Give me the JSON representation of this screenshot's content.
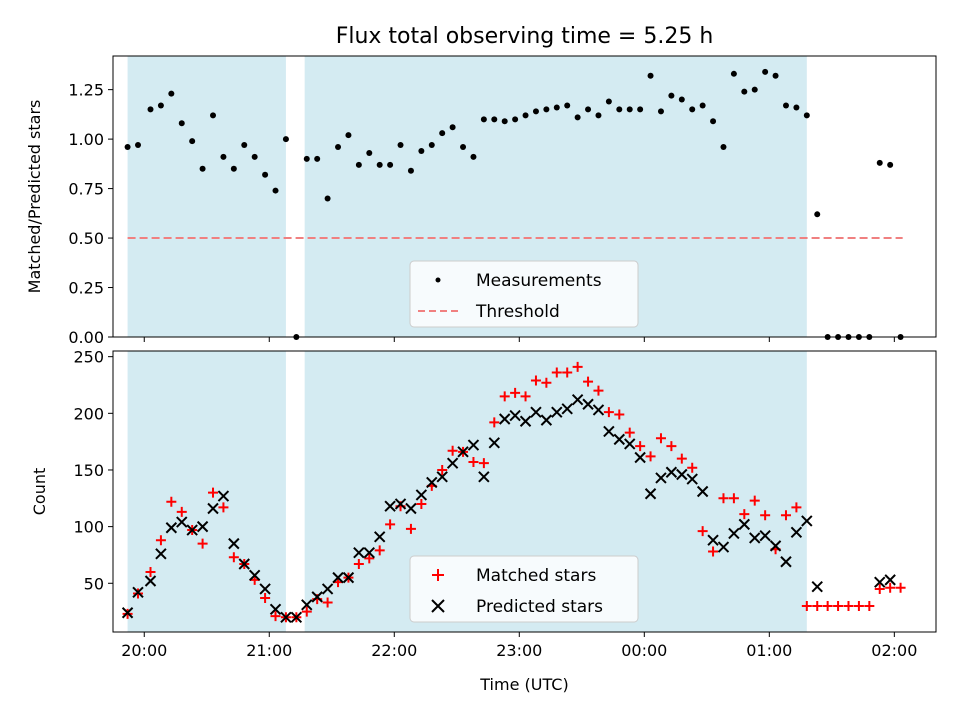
{
  "title": "Flux total observing time = 5.25 h",
  "colors": {
    "shade": "#add8e6",
    "threshold": "#f08080",
    "matched": "#ff0000",
    "predicted": "#000000",
    "measurement": "#000000"
  },
  "chart_data": [
    {
      "type": "scatter",
      "ylabel": "Matched/Predicted stars",
      "xlim": [
        "19:45",
        "02:20"
      ],
      "ylim": [
        0,
        1.42
      ],
      "yticks": [
        "0.00",
        "0.25",
        "0.50",
        "0.75",
        "1.00",
        "1.25"
      ],
      "shaded_intervals": [
        [
          "19:52",
          "21:08"
        ],
        [
          "21:17",
          "01:18"
        ]
      ],
      "legend": {
        "placement": "lower-center",
        "entries": [
          "Measurements",
          "Threshold"
        ]
      },
      "threshold": {
        "name": "Threshold",
        "y": 0.5,
        "x_range": [
          "19:52",
          "02:04"
        ]
      },
      "series": [
        {
          "name": "Measurements",
          "x": [
            "19:52",
            "19:57",
            "20:03",
            "20:08",
            "20:13",
            "20:18",
            "20:23",
            "20:28",
            "20:33",
            "20:38",
            "20:43",
            "20:48",
            "20:53",
            "20:58",
            "21:03",
            "21:08",
            "21:13",
            "21:18",
            "21:23",
            "21:28",
            "21:33",
            "21:38",
            "21:43",
            "21:48",
            "21:53",
            "21:58",
            "22:03",
            "22:08",
            "22:13",
            "22:18",
            "22:23",
            "22:28",
            "22:33",
            "22:38",
            "22:43",
            "22:48",
            "22:53",
            "22:58",
            "23:03",
            "23:08",
            "23:13",
            "23:18",
            "23:23",
            "23:28",
            "23:33",
            "23:38",
            "23:43",
            "23:48",
            "23:53",
            "23:58",
            "00:03",
            "00:08",
            "00:13",
            "00:18",
            "00:23",
            "00:28",
            "00:33",
            "00:38",
            "00:43",
            "00:48",
            "00:53",
            "00:58",
            "01:03",
            "01:08",
            "01:13",
            "01:18",
            "01:23",
            "01:28",
            "01:33",
            "01:38",
            "01:43",
            "01:48",
            "01:53",
            "01:58",
            "02:03"
          ],
          "y": [
            0.96,
            0.97,
            1.15,
            1.17,
            1.23,
            1.08,
            0.99,
            0.85,
            1.12,
            0.91,
            0.85,
            0.97,
            0.91,
            0.82,
            0.74,
            1.0,
            0.0,
            0.9,
            0.9,
            0.7,
            0.96,
            1.02,
            0.87,
            0.93,
            0.87,
            0.87,
            0.97,
            0.84,
            0.94,
            0.97,
            1.03,
            1.06,
            0.96,
            0.91,
            1.1,
            1.1,
            1.09,
            1.1,
            1.12,
            1.14,
            1.15,
            1.16,
            1.17,
            1.11,
            1.15,
            1.12,
            1.19,
            1.15,
            1.15,
            1.15,
            1.32,
            1.14,
            1.22,
            1.2,
            1.15,
            1.17,
            1.09,
            0.96,
            1.33,
            1.24,
            1.25,
            1.34,
            1.32,
            1.17,
            1.16,
            1.12,
            0.62,
            0.0,
            0.0,
            0.0,
            0.0,
            0.0,
            0.88,
            0.87,
            0.0
          ]
        }
      ]
    },
    {
      "type": "scatter",
      "xlabel": "Time (UTC)",
      "ylabel": "Count",
      "xlim": [
        "19:45",
        "02:20"
      ],
      "ylim": [
        7,
        255
      ],
      "yticks": [
        "50",
        "100",
        "150",
        "200",
        "250"
      ],
      "xticks": [
        "20:00",
        "21:00",
        "22:00",
        "23:00",
        "00:00",
        "01:00",
        "02:00"
      ],
      "shaded_intervals": [
        [
          "19:52",
          "21:08"
        ],
        [
          "21:17",
          "01:18"
        ]
      ],
      "legend": {
        "placement": "lower-center",
        "entries": [
          "Matched stars",
          "Predicted stars"
        ]
      },
      "series": [
        {
          "name": "Matched stars",
          "marker": "+",
          "x": [
            "19:52",
            "19:57",
            "20:03",
            "20:08",
            "20:13",
            "20:18",
            "20:23",
            "20:28",
            "20:33",
            "20:38",
            "20:43",
            "20:48",
            "20:53",
            "20:58",
            "21:03",
            "21:08",
            "21:13",
            "21:18",
            "21:23",
            "21:28",
            "21:33",
            "21:38",
            "21:43",
            "21:48",
            "21:53",
            "21:58",
            "22:03",
            "22:08",
            "22:13",
            "22:18",
            "22:23",
            "22:28",
            "22:33",
            "22:38",
            "22:43",
            "22:48",
            "22:53",
            "22:58",
            "23:03",
            "23:08",
            "23:13",
            "23:18",
            "23:23",
            "23:28",
            "23:33",
            "23:38",
            "23:43",
            "23:48",
            "23:53",
            "23:58",
            "00:03",
            "00:08",
            "00:13",
            "00:18",
            "00:23",
            "00:28",
            "00:33",
            "00:38",
            "00:43",
            "00:48",
            "00:53",
            "00:58",
            "01:03",
            "01:08",
            "01:13",
            "01:18",
            "01:23",
            "01:28",
            "01:33",
            "01:38",
            "01:43",
            "01:48",
            "01:53",
            "01:58",
            "02:03"
          ],
          "y": [
            23,
            41,
            60,
            88,
            122,
            113,
            97,
            85,
            130,
            117,
            73,
            67,
            53,
            37,
            21,
            20,
            20,
            25,
            36,
            33,
            51,
            55,
            67,
            72,
            79,
            102,
            118,
            98,
            120,
            136,
            150,
            167,
            166,
            157,
            156,
            192,
            215,
            218,
            215,
            229,
            227,
            236,
            236,
            241,
            228,
            220,
            201,
            199,
            183,
            171,
            162,
            178,
            171,
            160,
            152,
            96,
            78,
            125,
            125,
            111,
            123,
            110,
            80,
            110,
            117,
            30,
            30,
            30,
            30,
            30,
            30,
            30,
            45,
            46,
            46
          ]
        },
        {
          "name": "Predicted stars",
          "marker": "x",
          "x": [
            "19:52",
            "19:57",
            "20:03",
            "20:08",
            "20:13",
            "20:18",
            "20:23",
            "20:28",
            "20:33",
            "20:38",
            "20:43",
            "20:48",
            "20:53",
            "20:58",
            "21:03",
            "21:08",
            "21:13",
            "21:18",
            "21:23",
            "21:28",
            "21:33",
            "21:38",
            "21:43",
            "21:48",
            "21:53",
            "21:58",
            "22:03",
            "22:08",
            "22:13",
            "22:18",
            "22:23",
            "22:28",
            "22:33",
            "22:38",
            "22:43",
            "22:48",
            "22:53",
            "22:58",
            "23:03",
            "23:08",
            "23:13",
            "23:18",
            "23:23",
            "23:28",
            "23:33",
            "23:38",
            "23:43",
            "23:48",
            "23:53",
            "23:58",
            "00:03",
            "00:08",
            "00:13",
            "00:18",
            "00:23",
            "00:28",
            "00:33",
            "00:38",
            "00:43",
            "00:48",
            "00:53",
            "00:58",
            "01:03",
            "01:08",
            "01:13",
            "01:18",
            "01:23",
            "01:53",
            "01:58"
          ],
          "y": [
            24,
            42,
            52,
            76,
            99,
            104,
            97,
            100,
            116,
            127,
            85,
            67,
            57,
            45,
            27,
            20,
            20,
            31,
            38,
            45,
            55,
            55,
            77,
            77,
            91,
            118,
            120,
            116,
            128,
            139,
            144,
            156,
            166,
            172,
            144,
            174,
            195,
            198,
            193,
            201,
            194,
            201,
            204,
            212,
            208,
            203,
            184,
            177,
            173,
            161,
            129,
            143,
            148,
            146,
            142,
            131,
            88,
            82,
            94,
            102,
            90,
            92,
            83,
            69,
            95,
            105,
            47,
            51,
            53
          ]
        }
      ]
    }
  ]
}
